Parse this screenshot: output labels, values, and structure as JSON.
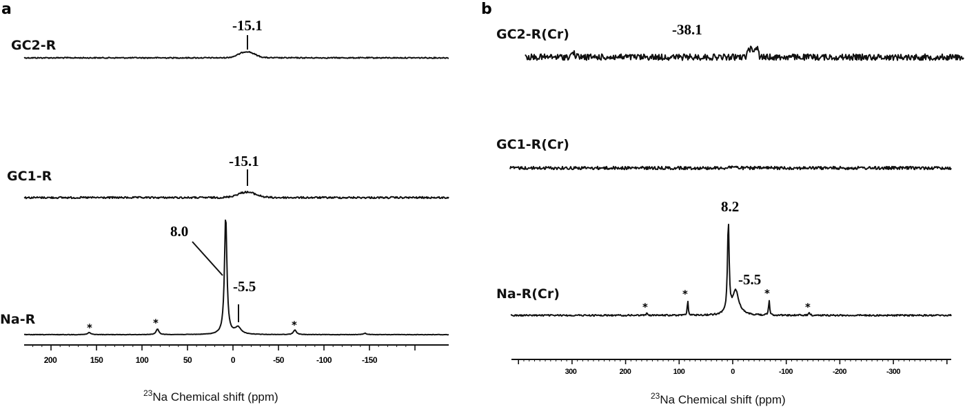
{
  "figure": {
    "panel_a": {
      "letter": "a",
      "spectra": [
        {
          "label": "GC2-R",
          "peak_label": "-15.1"
        },
        {
          "label": "GC1-R",
          "peak_label": "-15.1"
        },
        {
          "label": "Na-R",
          "peak_labels": [
            "8.0",
            "-5.5"
          ],
          "spinning_sideband_marker": "*"
        }
      ],
      "x_axis": {
        "ticks": [
          "200",
          "150",
          "100",
          "50",
          "0",
          "-50",
          "-100",
          "-150"
        ],
        "title_sup": "23",
        "title": "Na Chemical shift (ppm)"
      }
    },
    "panel_b": {
      "letter": "b",
      "spectra": [
        {
          "label": "GC2-R(Cr)",
          "peak_label": "-38.1"
        },
        {
          "label": "GC1-R(Cr)"
        },
        {
          "label": "Na-R(Cr)",
          "peak_labels": [
            "8.2",
            "-5.5"
          ],
          "spinning_sideband_marker": "*"
        }
      ],
      "x_axis": {
        "ticks": [
          "300",
          "200",
          "100",
          "0",
          "-100",
          "-200",
          "-300"
        ],
        "title_sup": "23",
        "title": "Na Chemical shift (ppm)"
      }
    }
  },
  "chart_data": [
    {
      "type": "line",
      "title": "a",
      "xlabel": "23Na Chemical shift (ppm)",
      "ylabel": "",
      "xlim": [
        230,
        -200
      ],
      "x_reversed": true,
      "grid": false,
      "tick_labels": [
        200,
        150,
        100,
        50,
        0,
        -50,
        -100,
        -150
      ],
      "series": [
        {
          "name": "GC2-R",
          "peaks": [
            {
              "x": -15.1,
              "label": "-15.1",
              "shape": "broad, weak"
            }
          ]
        },
        {
          "name": "GC1-R",
          "peaks": [
            {
              "x": -15.1,
              "label": "-15.1",
              "shape": "broad, weak"
            }
          ]
        },
        {
          "name": "Na-R",
          "peaks": [
            {
              "x": 8.0,
              "label": "8.0",
              "relative_height": 1.0,
              "shape": "sharp"
            },
            {
              "x": -5.5,
              "label": "-5.5",
              "relative_height": 0.06,
              "shape": "shoulder"
            }
          ],
          "spinning_sidebands": [
            158,
            83,
            -68,
            -145
          ]
        }
      ]
    },
    {
      "type": "line",
      "title": "b",
      "xlabel": "23Na Chemical shift (ppm)",
      "ylabel": "",
      "xlim": [
        400,
        -400
      ],
      "x_reversed": true,
      "grid": false,
      "tick_labels": [
        300,
        200,
        100,
        0,
        -100,
        -200,
        -300
      ],
      "series": [
        {
          "name": "GC2-R(Cr)",
          "peaks": [
            {
              "x": -38.1,
              "label": "-38.1",
              "shape": "weak, noisy"
            }
          ],
          "noise": "high"
        },
        {
          "name": "GC1-R(Cr)",
          "peaks": [],
          "noise": "moderate"
        },
        {
          "name": "Na-R(Cr)",
          "peaks": [
            {
              "x": 8.2,
              "label": "8.2",
              "relative_height": 1.0,
              "shape": "sharp"
            },
            {
              "x": -5.5,
              "label": "-5.5",
              "relative_height": 0.3,
              "shape": "broad"
            }
          ],
          "spinning_sidebands": [
            160,
            84,
            -68,
            -143
          ]
        }
      ]
    }
  ]
}
